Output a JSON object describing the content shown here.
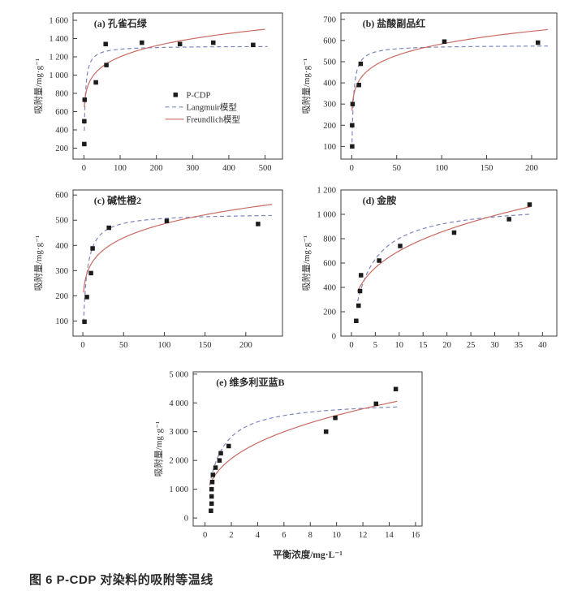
{
  "caption": "图 6 P-CDP 对染料的吸附等温线",
  "legend": {
    "points": "P-CDP",
    "langmuir": "Langmuir模型",
    "freundlich": "Freundlich模型"
  },
  "colors": {
    "points": "#1c1c1c",
    "langmuir": "#7d87bd",
    "freundlich": "#c96a62",
    "frame": "#3d3d3d",
    "text": "#2b2b2b"
  },
  "chart_data": [
    {
      "id": "a",
      "type": "scatter",
      "title": "(a) 孔雀石绿",
      "ylabel": "吸附量/mg·g⁻¹",
      "xlabel": "",
      "xlim": [
        -30,
        548
      ],
      "ylim": [
        80,
        1680
      ],
      "xticks": [
        "0",
        "100",
        "200",
        "300",
        "400",
        "500"
      ],
      "yticks": [
        "200",
        "400",
        "600",
        "800",
        "1 000",
        "1 200",
        "1 400",
        "1 600"
      ],
      "points": [
        [
          1,
          245
        ],
        [
          1,
          495
        ],
        [
          2,
          730
        ],
        [
          33,
          920
        ],
        [
          62,
          1110
        ],
        [
          60,
          1340
        ],
        [
          160,
          1355
        ],
        [
          265,
          1340
        ],
        [
          357,
          1355
        ],
        [
          467,
          1330
        ]
      ],
      "langmuir_fit": {
        "qm": 1320,
        "kl": 0.35,
        "x_range": [
          1.2,
          507
        ]
      },
      "freundlich_fit": {
        "kf": 633,
        "n_inv": 0.139,
        "x_range": [
          1.2,
          500
        ]
      },
      "show_legend": true,
      "legend_position": "center-right"
    },
    {
      "id": "b",
      "type": "scatter",
      "title": "(b) 盐酸副品红",
      "ylabel": "吸附量/mg·g⁻¹",
      "xlabel": "",
      "xlim": [
        -12,
        228
      ],
      "ylim": [
        40,
        730
      ],
      "xticks": [
        "0",
        "50",
        "100",
        "150",
        "200"
      ],
      "yticks": [
        "100",
        "200",
        "300",
        "400",
        "500",
        "600",
        "700"
      ],
      "points": [
        [
          0.5,
          100
        ],
        [
          0.5,
          200
        ],
        [
          1,
          300
        ],
        [
          8,
          390
        ],
        [
          10,
          490
        ],
        [
          103,
          595
        ],
        [
          207,
          590
        ]
      ],
      "langmuir_fit": {
        "qm": 578,
        "kl": 0.65,
        "x_range": [
          0.4,
          218
        ]
      },
      "freundlich_fit": {
        "kf": 305,
        "n_inv": 0.141,
        "x_range": [
          0.4,
          218
        ]
      },
      "show_legend": false
    },
    {
      "id": "c",
      "type": "scatter",
      "title": "(c) 碱性橙2",
      "ylabel": "吸附量/mg·g⁻¹",
      "xlabel": "",
      "xlim": [
        -12,
        245
      ],
      "ylim": [
        40,
        620
      ],
      "xticks": [
        "0",
        "50",
        "100",
        "150",
        "200"
      ],
      "yticks": [
        "100",
        "200",
        "300",
        "400",
        "500",
        "600"
      ],
      "points": [
        [
          2,
          97
        ],
        [
          5,
          195
        ],
        [
          10,
          290
        ],
        [
          12,
          388
        ],
        [
          32,
          470
        ],
        [
          103,
          497
        ],
        [
          215,
          485
        ]
      ],
      "langmuir_fit": {
        "qm": 528,
        "kl": 0.24,
        "x_range": [
          0.9,
          232
        ]
      },
      "freundlich_fit": {
        "kf": 217,
        "n_inv": 0.175,
        "x_range": [
          0.9,
          232
        ]
      },
      "show_legend": false
    },
    {
      "id": "d",
      "type": "scatter",
      "title": "(d) 金胺",
      "ylabel": "吸附量/mg·g⁻¹",
      "xlabel": "",
      "xlim": [
        -2.2,
        43
      ],
      "ylim": [
        0,
        1200
      ],
      "xticks": [
        "0",
        "5",
        "10",
        "15",
        "20",
        "25",
        "30",
        "35",
        "40"
      ],
      "yticks": [
        "0",
        "200",
        "400",
        "600",
        "800",
        "1 000",
        "1 200"
      ],
      "points": [
        [
          1,
          125
        ],
        [
          1.5,
          250
        ],
        [
          1.8,
          370
        ],
        [
          2,
          500
        ],
        [
          5.8,
          620
        ],
        [
          10.2,
          740
        ],
        [
          21.5,
          850
        ],
        [
          33,
          960
        ],
        [
          37.3,
          1080
        ]
      ],
      "langmuir_fit": {
        "qm": 1100,
        "kl": 0.27,
        "x_range": [
          1.3,
          37.6
        ]
      },
      "freundlich_fit": {
        "kf": 337,
        "n_inv": 0.317,
        "x_range": [
          1.3,
          37.6
        ]
      },
      "show_legend": false
    },
    {
      "id": "e",
      "type": "scatter",
      "title": "(e) 维多利亚蓝B",
      "ylabel": "吸附量/mg·g⁻¹",
      "xlabel": "平衡浓度/mg·L⁻¹",
      "xlim": [
        -0.9,
        16.5
      ],
      "ylim": [
        -280,
        5080
      ],
      "xticks": [
        "0",
        "2",
        "4",
        "6",
        "8",
        "10",
        "12",
        "14",
        "16"
      ],
      "yticks": [
        "0",
        "1 000",
        "2 000",
        "3 000",
        "4 000",
        "5 000"
      ],
      "points": [
        [
          0.45,
          250
        ],
        [
          0.5,
          500
        ],
        [
          0.5,
          750
        ],
        [
          0.5,
          1000
        ],
        [
          0.55,
          1250
        ],
        [
          0.6,
          1500
        ],
        [
          0.8,
          1750
        ],
        [
          1.1,
          2000
        ],
        [
          1.2,
          2250
        ],
        [
          1.8,
          2500
        ],
        [
          9.2,
          3000
        ],
        [
          9.9,
          3480
        ],
        [
          13,
          3970
        ],
        [
          14.5,
          4480
        ]
      ],
      "langmuir_fit": {
        "qm": 4100,
        "kl": 1.1,
        "x_range": [
          0.35,
          14.6
        ]
      },
      "freundlich_fit": {
        "kf": 1630,
        "n_inv": 0.34,
        "x_range": [
          0.35,
          14.6
        ]
      },
      "show_legend": false
    }
  ]
}
